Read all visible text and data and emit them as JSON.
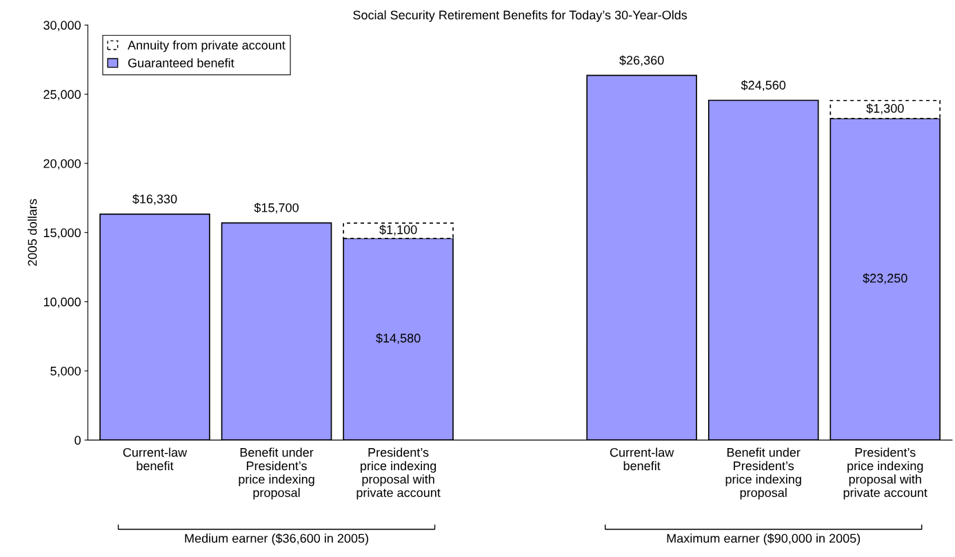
{
  "chart_data": {
    "type": "bar",
    "stacked": true,
    "title": "Social Security Retirement Benefits for Today’s 30-Year-Olds",
    "ylabel": "2005 dollars",
    "categories": [
      "Current-law\nbenefit",
      "Benefit under\nPresident’s\nprice indexing\nproposal",
      "President’s\nprice indexing\nproposal with\nprivate account",
      null,
      "Current-law\nbenefit",
      "Benefit under\nPresident’s\nprice indexing\nproposal",
      "President’s\nprice indexing\nproposal with\nprivate account"
    ],
    "series": [
      {
        "name": "Guaranteed benefit",
        "color": "#9999ff",
        "values": [
          16330,
          15700,
          14580,
          null,
          26360,
          24560,
          23250
        ],
        "value_labels": [
          "$16,330",
          "$15,700",
          "$14,580",
          null,
          "$26,360",
          "$24,560",
          "$23,250"
        ]
      },
      {
        "name": "Annuity from private account",
        "color": "#ffffff",
        "line_style": "dashed",
        "values": [
          null,
          null,
          1100,
          null,
          null,
          null,
          1300
        ],
        "value_labels": [
          null,
          null,
          "$1,100",
          null,
          null,
          null,
          "$1,300"
        ]
      }
    ],
    "ylim": [
      0,
      30000
    ],
    "yticks": [
      0,
      {
        "value": 5000,
        "label": "5,000"
      },
      {
        "value": 10000,
        "label": "10,000"
      },
      {
        "value": 15000,
        "label": "15,000"
      },
      {
        "value": 20000,
        "label": "20,000"
      },
      {
        "value": 25000,
        "label": "25,000"
      },
      {
        "value": 30000,
        "label": "30,000"
      }
    ],
    "grid": false,
    "legend": "top left",
    "annotations": [
      "Medium earner ($36,600 in 2005)",
      "Maximum earner ($90,000 in 2005)"
    ]
  }
}
